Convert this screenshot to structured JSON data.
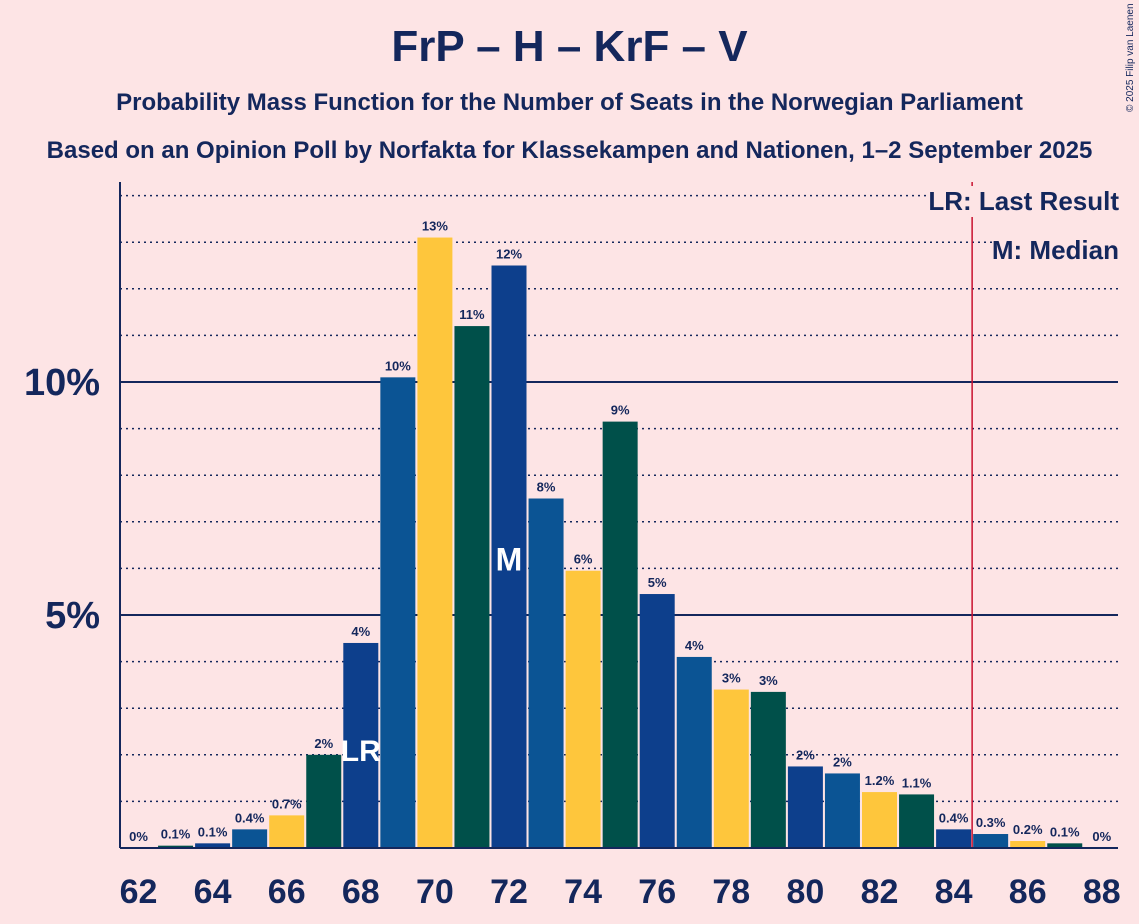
{
  "title": "FrP – H – KrF – V",
  "subtitle": "Probability Mass Function for the Number of Seats in the Norwegian Parliament",
  "subtitle2": "Based on an Opinion Poll by Norfakta for Klassekampen and Nationen, 1–2 September 2025",
  "copyright": "© 2025 Filip van Laenen",
  "legend": {
    "lr": "LR: Last Result",
    "m": "M: Median"
  },
  "chart_data": {
    "type": "bar",
    "x": [
      62,
      63,
      64,
      65,
      66,
      67,
      68,
      69,
      70,
      71,
      72,
      73,
      74,
      75,
      76,
      77,
      78,
      79,
      80,
      81,
      82,
      83,
      84,
      85,
      86,
      87,
      88
    ],
    "values": [
      0,
      0.05,
      0.1,
      0.4,
      0.7,
      2.0,
      4.4,
      10.1,
      13.1,
      11.2,
      12.5,
      7.5,
      5.95,
      9.15,
      5.45,
      4.1,
      3.4,
      3.35,
      1.75,
      1.6,
      1.2,
      1.15,
      0.4,
      0.3,
      0.15,
      0.1,
      0
    ],
    "labels": [
      "0%",
      "0.1%",
      "0.1%",
      "0.4%",
      "0.7%",
      "2%",
      "4%",
      "10%",
      "13%",
      "11%",
      "12%",
      "8%",
      "6%",
      "9%",
      "5%",
      "4%",
      "3%",
      "3%",
      "2%",
      "2%",
      "1.2%",
      "1.1%",
      "0.4%",
      "0.3%",
      "0.2%",
      "0.1%",
      "0%"
    ],
    "x_tick_labels": [
      "62",
      "64",
      "66",
      "68",
      "70",
      "72",
      "74",
      "76",
      "78",
      "80",
      "82",
      "84",
      "86",
      "88"
    ],
    "y_tick_labels": [
      "5%",
      "10%"
    ],
    "y_ticks": [
      5,
      10
    ],
    "ylim": [
      0,
      14.2
    ],
    "majority_line": 84.5,
    "last_result": {
      "x": 68,
      "label": "LR"
    },
    "median": {
      "x": 72,
      "label": "M"
    },
    "colors": {
      "frp": "#0D3F8C",
      "h": "#0B5494",
      "krf": "#FEC63C",
      "v": "#00504A",
      "axis": "#14275C",
      "majority": "#C8102E"
    },
    "bar_color_cycle": [
      "frp",
      "h",
      "krf",
      "v"
    ],
    "cycle_start_x": 68
  }
}
